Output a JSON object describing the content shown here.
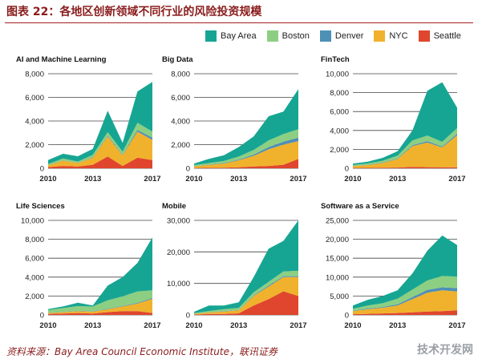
{
  "figure_title": "图表 22：各地区创新领域不同行业的风险投资规模",
  "source": "资料来源：Bay Area Council Economic Institute，联讯证券",
  "watermark": "技术开发网",
  "colors": {
    "Bay Area": "#17a593",
    "Boston": "#8ccf82",
    "Denver": "#4e8fb5",
    "NYC": "#f0b22c",
    "Seattle": "#e0462d"
  },
  "legend": [
    "Bay Area",
    "Boston",
    "Denver",
    "NYC",
    "Seattle"
  ],
  "chart_data": [
    {
      "type": "area",
      "title": "AI and Machine Learning",
      "x": [
        2010,
        2011,
        2012,
        2013,
        2014,
        2015,
        2016,
        2017
      ],
      "xticks": [
        "2010",
        "2013",
        "2017"
      ],
      "ylim": [
        0,
        8000
      ],
      "yticks": [
        0,
        2000,
        4000,
        6000,
        8000
      ],
      "series": [
        {
          "name": "Seattle",
          "values": [
            100,
            200,
            150,
            300,
            1000,
            200,
            900,
            700
          ]
        },
        {
          "name": "NYC",
          "values": [
            150,
            450,
            300,
            600,
            1700,
            900,
            2200,
            1700
          ]
        },
        {
          "name": "Denver",
          "values": [
            20,
            30,
            20,
            40,
            60,
            50,
            150,
            200
          ]
        },
        {
          "name": "Boston",
          "values": [
            80,
            150,
            100,
            200,
            300,
            250,
            600,
            500
          ]
        },
        {
          "name": "Bay Area",
          "values": [
            350,
            400,
            450,
            500,
            1800,
            750,
            2650,
            4200
          ]
        }
      ]
    },
    {
      "type": "area",
      "title": "Big Data",
      "x": [
        2010,
        2011,
        2012,
        2013,
        2014,
        2015,
        2016,
        2017
      ],
      "xticks": [
        "2010",
        "2013",
        "2017"
      ],
      "ylim": [
        0,
        8000
      ],
      "yticks": [
        0,
        2000,
        4000,
        6000,
        8000
      ],
      "series": [
        {
          "name": "Seattle",
          "values": [
            20,
            40,
            50,
            80,
            150,
            200,
            300,
            800
          ]
        },
        {
          "name": "NYC",
          "values": [
            150,
            250,
            350,
            600,
            900,
            1400,
            1700,
            1500
          ]
        },
        {
          "name": "Denver",
          "values": [
            20,
            30,
            40,
            60,
            100,
            200,
            250,
            300
          ]
        },
        {
          "name": "Boston",
          "values": [
            80,
            120,
            180,
            250,
            400,
            550,
            650,
            700
          ]
        },
        {
          "name": "Bay Area",
          "values": [
            130,
            360,
            480,
            810,
            1150,
            2050,
            1900,
            3400
          ]
        }
      ]
    },
    {
      "type": "area",
      "title": "FinTech",
      "x": [
        2010,
        2011,
        2012,
        2013,
        2014,
        2015,
        2016,
        2017
      ],
      "xticks": [
        "2010",
        "2013",
        "2017"
      ],
      "ylim": [
        0,
        10000
      ],
      "yticks": [
        0,
        2000,
        4000,
        6000,
        8000,
        10000
      ],
      "series": [
        {
          "name": "Seattle",
          "values": [
            30,
            40,
            60,
            80,
            150,
            120,
            100,
            100
          ]
        },
        {
          "name": "NYC",
          "values": [
            200,
            300,
            500,
            900,
            2200,
            2600,
            2100,
            3400
          ]
        },
        {
          "name": "Denver",
          "values": [
            20,
            30,
            40,
            50,
            100,
            150,
            100,
            150
          ]
        },
        {
          "name": "Boston",
          "values": [
            100,
            150,
            200,
            300,
            500,
            600,
            500,
            600
          ]
        },
        {
          "name": "Bay Area",
          "values": [
            150,
            180,
            300,
            470,
            1050,
            4730,
            6300,
            2150
          ]
        }
      ]
    },
    {
      "type": "area",
      "title": "Life Sciences",
      "x": [
        2010,
        2011,
        2012,
        2013,
        2014,
        2015,
        2016,
        2017
      ],
      "xticks": [
        "2010",
        "2013",
        "2017"
      ],
      "ylim": [
        0,
        10000
      ],
      "yticks": [
        0,
        2000,
        4000,
        6000,
        8000,
        10000
      ],
      "series": [
        {
          "name": "Seattle",
          "values": [
            100,
            150,
            200,
            150,
            300,
            400,
            400,
            200
          ]
        },
        {
          "name": "NYC",
          "values": [
            100,
            150,
            200,
            200,
            300,
            500,
            800,
            1500
          ]
        },
        {
          "name": "Denver",
          "values": [
            20,
            30,
            30,
            40,
            50,
            60,
            80,
            100
          ]
        },
        {
          "name": "Boston",
          "values": [
            300,
            400,
            500,
            500,
            900,
            1000,
            1200,
            800
          ]
        },
        {
          "name": "Bay Area",
          "values": [
            100,
            170,
            370,
            110,
            1550,
            2040,
            3020,
            5600
          ]
        }
      ]
    },
    {
      "type": "area",
      "title": "Mobile",
      "x": [
        2010,
        2011,
        2012,
        2013,
        2014,
        2015,
        2016,
        2017
      ],
      "xticks": [
        "2010",
        "2013",
        "2017"
      ],
      "ylim": [
        0,
        30000
      ],
      "yticks": [
        0,
        10000,
        20000,
        30000
      ],
      "series": [
        {
          "name": "Seattle",
          "values": [
            100,
            300,
            300,
            500,
            3000,
            5000,
            7500,
            6000
          ]
        },
        {
          "name": "NYC",
          "values": [
            200,
            500,
            800,
            1000,
            3000,
            4000,
            4500,
            6000
          ]
        },
        {
          "name": "Denver",
          "values": [
            50,
            50,
            100,
            100,
            200,
            300,
            300,
            300
          ]
        },
        {
          "name": "Boston",
          "values": [
            200,
            400,
            600,
            600,
            1000,
            1200,
            1500,
            1700
          ]
        },
        {
          "name": "Bay Area",
          "values": [
            450,
            1750,
            1200,
            1800,
            4800,
            10500,
            9700,
            16000
          ]
        }
      ]
    },
    {
      "type": "area",
      "title": "Software as a Service",
      "x": [
        2010,
        2011,
        2012,
        2013,
        2014,
        2015,
        2016,
        2017
      ],
      "xticks": [
        "2010",
        "2013",
        "2017"
      ],
      "ylim": [
        0,
        25000
      ],
      "yticks": [
        0,
        5000,
        10000,
        15000,
        20000,
        25000
      ],
      "series": [
        {
          "name": "Seattle",
          "values": [
            200,
            300,
            400,
            500,
            700,
            900,
            1000,
            1200
          ]
        },
        {
          "name": "NYC",
          "values": [
            800,
            1200,
            1500,
            2000,
            3500,
            5000,
            5500,
            5000
          ]
        },
        {
          "name": "Denver",
          "values": [
            100,
            200,
            200,
            300,
            500,
            700,
            800,
            900
          ]
        },
        {
          "name": "Boston",
          "values": [
            500,
            800,
            1000,
            1500,
            2000,
            2500,
            3000,
            3000
          ]
        },
        {
          "name": "Bay Area",
          "values": [
            900,
            1500,
            1900,
            2200,
            4300,
            7900,
            10700,
            8400
          ]
        }
      ]
    }
  ]
}
